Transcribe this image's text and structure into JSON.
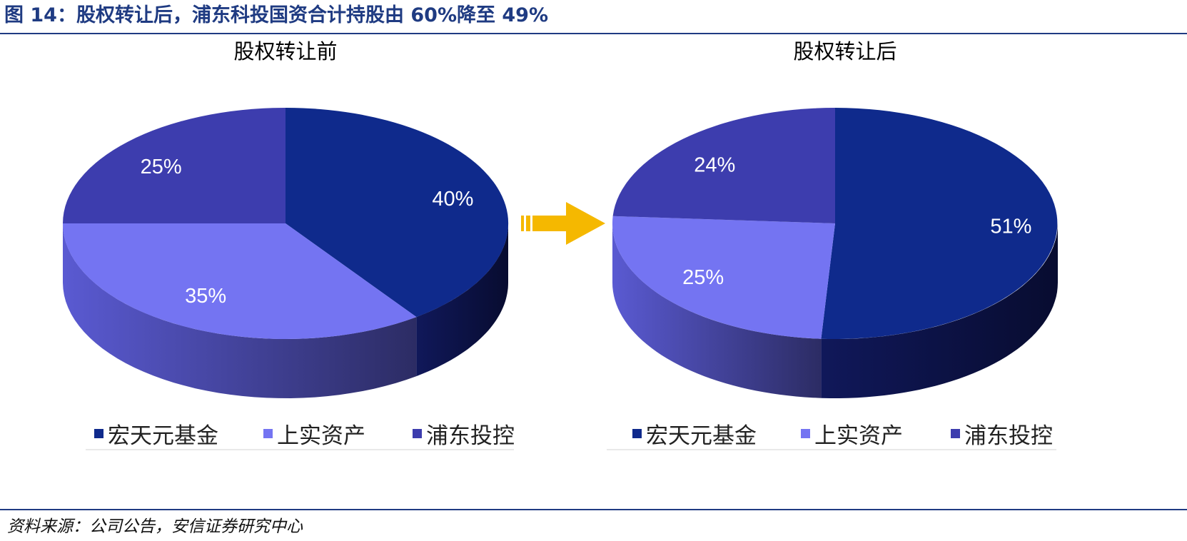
{
  "figure": {
    "title": "图 14：股权转让后，浦东科投国资合计持股由 60%降至 49%",
    "source": "资料来源：公司公告，安信证券研究中心"
  },
  "colors": {
    "series": [
      "#0f2a8c",
      "#7474f2",
      "#3d3dae"
    ],
    "series_side_light": [
      "#10185a",
      "#5a5ad2",
      "#4646b4"
    ],
    "series_side_dark": [
      "#080c30",
      "#2c2c64",
      "#24246a"
    ],
    "rule": "#1f3b82",
    "arrow": "#f5b800"
  },
  "chart_data": [
    {
      "type": "pie",
      "title": "股权转让前",
      "categories": [
        "宏天元基金",
        "上实资产",
        "浦东投控"
      ],
      "values": [
        40,
        35,
        25
      ],
      "labels": [
        "40%",
        "35%",
        "25%"
      ]
    },
    {
      "type": "pie",
      "title": "股权转让后",
      "categories": [
        "宏天元基金",
        "上实资产",
        "浦东投控"
      ],
      "values": [
        51,
        25,
        24
      ],
      "labels": [
        "51%",
        "25%",
        "24%"
      ]
    }
  ],
  "legend_items": [
    "宏天元基金",
    "上实资产",
    "浦东投控"
  ]
}
